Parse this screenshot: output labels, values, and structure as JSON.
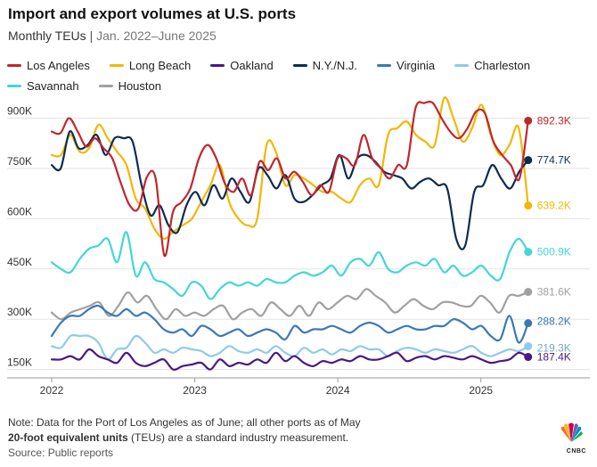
{
  "title": "Import and export volumes at U.S. ports",
  "subtitle_main": "Monthly TEUs",
  "subtitle_sep": "|",
  "subtitle_range": "Jan. 2022–June 2025",
  "footer": {
    "note": "Note: Data for the Port of Los Angeles as of June; all other ports as of May",
    "teu_bold": "20-foot equivalent units",
    "teu_rest": " (TEUs) are a standard industry measurement.",
    "source": "Source: Public reports"
  },
  "logo_text": "CNBC",
  "chart_data": {
    "type": "line",
    "title": "Import and export volumes at U.S. ports",
    "ylim": [
      125,
      960
    ],
    "xlim": [
      2022.0,
      2025.45
    ],
    "y_ticks": [
      {
        "value": 150,
        "label": "150K"
      },
      {
        "value": 300,
        "label": "300K"
      },
      {
        "value": 450,
        "label": "450K"
      },
      {
        "value": 600,
        "label": "600K"
      },
      {
        "value": 750,
        "label": "750K"
      },
      {
        "value": 900,
        "label": "900K"
      }
    ],
    "x_ticks": [
      {
        "value": 2022,
        "label": "2022"
      },
      {
        "value": 2023,
        "label": "2023"
      },
      {
        "value": 2024,
        "label": "2024"
      },
      {
        "value": 2025,
        "label": "2025"
      }
    ],
    "grid": true,
    "legend_position": "top",
    "series": [
      {
        "name": "Los Angeles",
        "color": "#c0272d",
        "end_label": "892.3K",
        "values": [
          860,
          855,
          900,
          860,
          815,
          840,
          810,
          780,
          705,
          640,
          630,
          725,
          720,
          490,
          620,
          650,
          690,
          780,
          820,
          780,
          705,
          680,
          720,
          670,
          770,
          745,
          780,
          720,
          740,
          710,
          670,
          700,
          680,
          780,
          780,
          760,
          850,
          780,
          750,
          720,
          760,
          760,
          930,
          945,
          945,
          900,
          860,
          840,
          870,
          920,
          915,
          830,
          790,
          760,
          720,
          892.3
        ]
      },
      {
        "name": "Long Beach",
        "color": "#f2b705",
        "end_label": "639.2K",
        "values": [
          790,
          790,
          850,
          800,
          810,
          880,
          840,
          800,
          760,
          660,
          630,
          570,
          540,
          560,
          580,
          600,
          650,
          700,
          760,
          650,
          600,
          580,
          600,
          820,
          800,
          700,
          730,
          720,
          700,
          680,
          680,
          660,
          650,
          700,
          720,
          700,
          850,
          870,
          890,
          850,
          830,
          820,
          960,
          900,
          830,
          870,
          940,
          850,
          790,
          820,
          870,
          639.2
        ]
      },
      {
        "name": "Oakland",
        "color": "#4b1880",
        "end_label": "187.4K",
        "values": [
          180,
          180,
          190,
          180,
          210,
          190,
          180,
          170,
          200,
          170,
          160,
          170,
          180,
          150,
          160,
          165,
          170,
          150,
          180,
          160,
          170,
          165,
          180,
          170,
          200,
          175,
          190,
          170,
          160,
          175,
          170,
          180,
          175,
          190,
          180,
          180,
          190,
          200,
          175,
          185,
          190,
          180,
          190,
          185,
          180,
          190,
          180,
          170,
          175,
          180,
          200,
          187.4
        ]
      },
      {
        "name": "N.Y./N.J.",
        "color": "#0d2b52",
        "end_label": "774.7K",
        "values": [
          760,
          750,
          860,
          810,
          820,
          850,
          790,
          840,
          840,
          830,
          700,
          610,
          640,
          580,
          560,
          640,
          680,
          640,
          700,
          660,
          720,
          680,
          650,
          750,
          730,
          690,
          730,
          660,
          650,
          670,
          700,
          720,
          790,
          720,
          780,
          790,
          770,
          740,
          730,
          720,
          690,
          710,
          720,
          700,
          690,
          540,
          520,
          680,
          700,
          760,
          720,
          690,
          740,
          774.7
        ]
      },
      {
        "name": "Virginia",
        "color": "#3a78b8",
        "end_label": "288.2K",
        "values": [
          250,
          290,
          310,
          310,
          330,
          340,
          320,
          310,
          330,
          310,
          320,
          300,
          270,
          260,
          270,
          250,
          280,
          270,
          250,
          260,
          270,
          250,
          260,
          270,
          260,
          240,
          280,
          260,
          270,
          270,
          280,
          270,
          260,
          280,
          290,
          280,
          260,
          270,
          280,
          270,
          270,
          280,
          280,
          300,
          290,
          270,
          280,
          250,
          240,
          310,
          230,
          288.2
        ]
      },
      {
        "name": "Charleston",
        "color": "#8fcbe6",
        "end_label": "219.3K",
        "values": [
          220,
          215,
          250,
          250,
          250,
          230,
          180,
          210,
          215,
          250,
          230,
          200,
          210,
          200,
          215,
          210,
          205,
          190,
          200,
          220,
          205,
          200,
          210,
          200,
          220,
          200,
          190,
          215,
          200,
          210,
          195,
          210,
          205,
          220,
          210,
          210,
          190,
          205,
          215,
          210,
          200,
          210,
          205,
          200,
          210,
          220,
          200,
          190,
          200,
          210,
          205,
          219.3
        ]
      },
      {
        "name": "Savannah",
        "color": "#43d6d6",
        "end_label": "500.9K",
        "values": [
          470,
          450,
          440,
          480,
          510,
          520,
          540,
          470,
          560,
          430,
          470,
          420,
          410,
          390,
          370,
          410,
          400,
          360,
          390,
          410,
          400,
          410,
          400,
          420,
          410,
          410,
          430,
          440,
          430,
          440,
          460,
          430,
          470,
          480,
          460,
          500,
          450,
          440,
          460,
          470,
          460,
          480,
          440,
          460,
          430,
          440,
          460,
          430,
          420,
          500,
          540,
          500.9
        ]
      },
      {
        "name": "Houston",
        "color": "#a0a0a0",
        "end_label": "381.6K",
        "values": [
          320,
          300,
          320,
          330,
          340,
          350,
          310,
          340,
          380,
          350,
          370,
          330,
          300,
          330,
          310,
          320,
          310,
          330,
          340,
          300,
          320,
          330,
          310,
          350,
          330,
          310,
          340,
          310,
          350,
          330,
          350,
          370,
          360,
          390,
          370,
          350,
          320,
          340,
          360,
          340,
          330,
          350,
          350,
          340,
          340,
          370,
          350,
          320,
          370,
          370,
          381.6
        ]
      }
    ]
  }
}
